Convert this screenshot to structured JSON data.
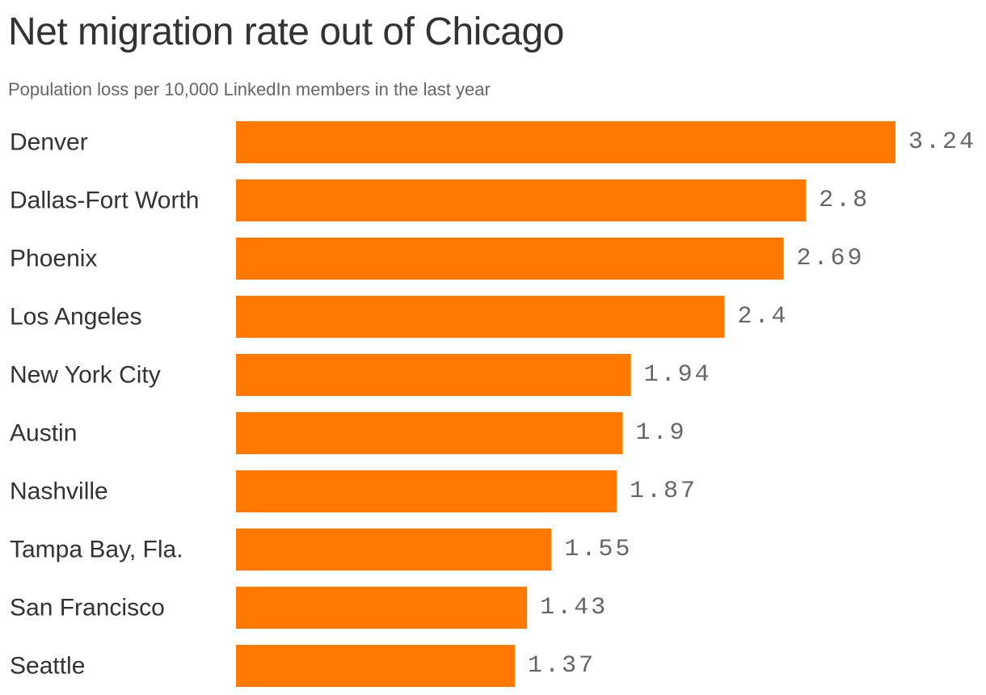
{
  "chart_data": {
    "type": "bar",
    "orientation": "horizontal",
    "title": "Net migration rate out of Chicago",
    "subtitle": "Population loss per 10,000 LinkedIn members in the last year",
    "categories": [
      "Denver",
      "Dallas-Fort Worth",
      "Phoenix",
      "Los Angeles",
      "New York City",
      "Austin",
      "Nashville",
      "Tampa Bay, Fla.",
      "San Francisco",
      "Seattle"
    ],
    "values": [
      3.24,
      2.8,
      2.69,
      2.4,
      1.94,
      1.9,
      1.87,
      1.55,
      1.43,
      1.37
    ],
    "value_labels": [
      "3.24",
      "2.8",
      "2.69",
      "2.4",
      "1.94",
      "1.9",
      "1.87",
      "1.55",
      "1.43",
      "1.37"
    ],
    "xlim": [
      0,
      3.24
    ],
    "grid": false,
    "bar_color": "#FF7900"
  }
}
